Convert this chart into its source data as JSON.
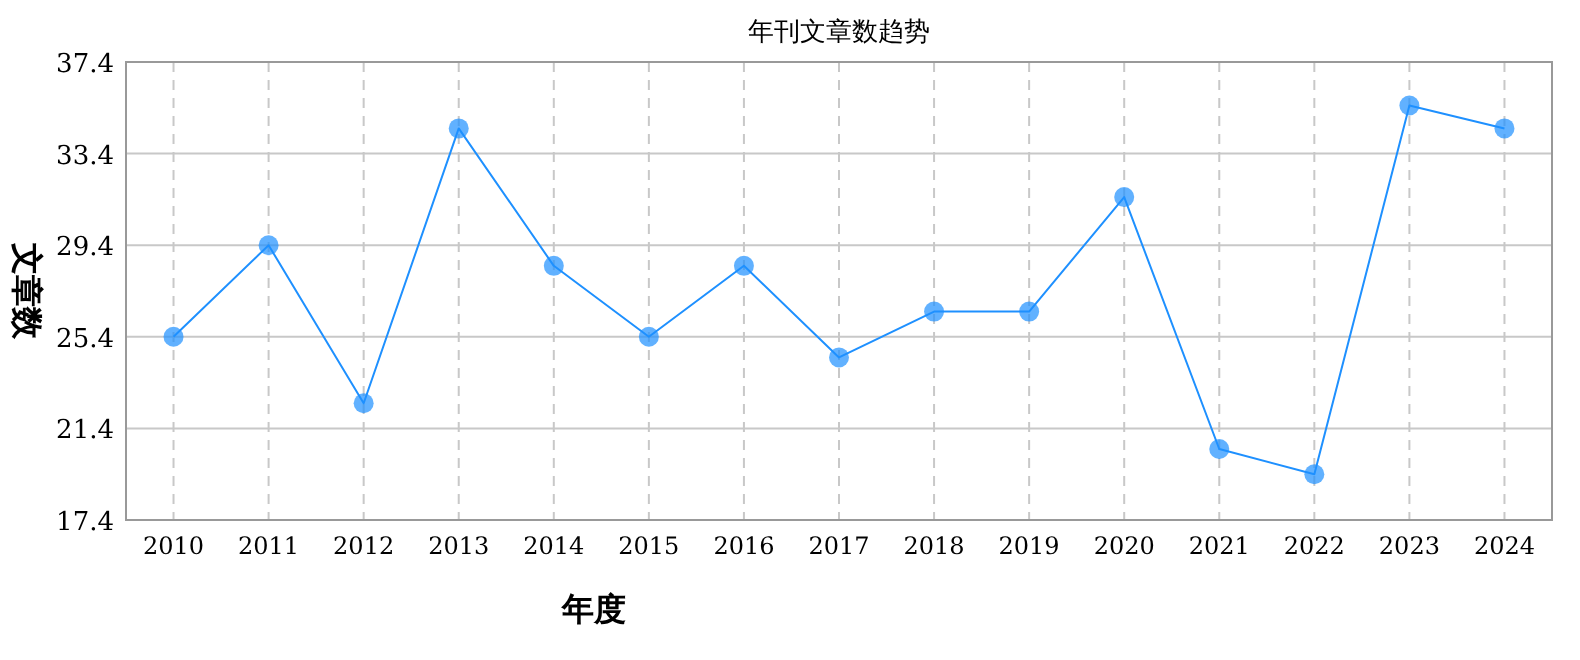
{
  "chart_data": {
    "type": "line",
    "title": "年刊文章数趋势",
    "xlabel": "年度",
    "ylabel": "文章数",
    "categories": [
      "2010",
      "2011",
      "2012",
      "2013",
      "2014",
      "2015",
      "2016",
      "2017",
      "2018",
      "2019",
      "2020",
      "2021",
      "2022",
      "2023",
      "2024"
    ],
    "series": [
      {
        "color": "#1e90ff",
        "values": [
          25.4,
          29.4,
          22.5,
          34.5,
          28.5,
          25.4,
          28.5,
          24.5,
          26.5,
          26.5,
          31.5,
          20.5,
          19.4,
          35.5,
          34.5
        ]
      }
    ],
    "ylim": [
      17.4,
      37.4
    ],
    "yticks": [
      17.4,
      21.4,
      25.4,
      29.4,
      33.4,
      37.4
    ],
    "grid": true,
    "marker": "circle",
    "line_style": "solid"
  }
}
